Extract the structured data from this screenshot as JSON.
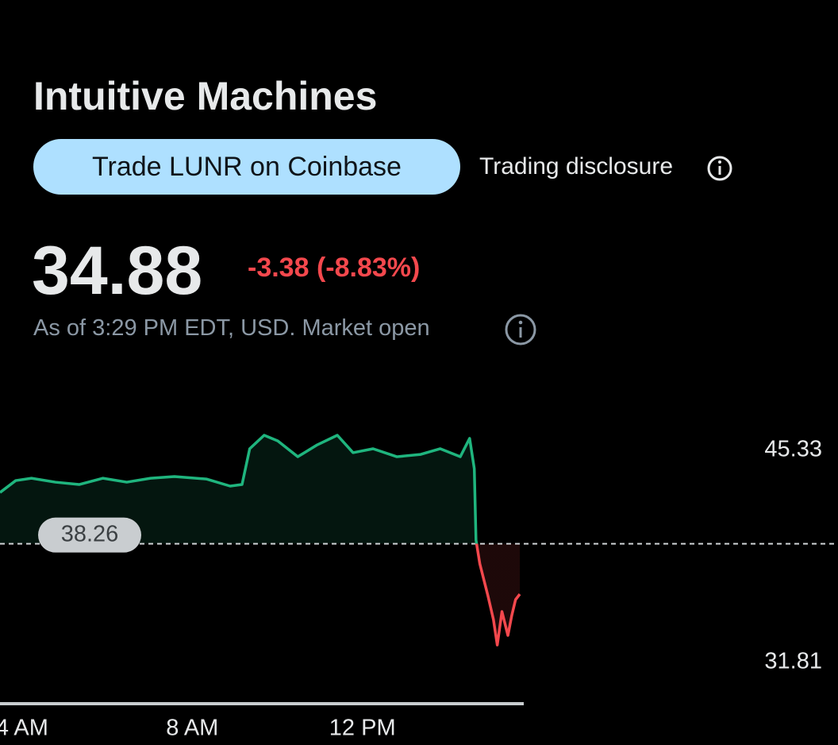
{
  "header": {
    "title": "Intuitive Machines",
    "trade_button": "Trade LUNR on Coinbase",
    "disclosure_link": "Trading disclosure"
  },
  "quote": {
    "price": "34.88",
    "change": "-3.38 (-8.83%)",
    "note": "As of 3:29 PM EDT, USD. Market open"
  },
  "chart_data": {
    "type": "line",
    "x": [
      3.48,
      3.85,
      4.22,
      4.78,
      5.34,
      5.9,
      6.46,
      7.02,
      7.58,
      8.33,
      8.89,
      9.17,
      9.35,
      9.69,
      10.01,
      10.48,
      10.94,
      11.41,
      11.78,
      12.25,
      12.81,
      13.37,
      13.83,
      14.3,
      14.52,
      14.63,
      14.67,
      14.76,
      14.95,
      15.08,
      15.17,
      15.28,
      15.42,
      15.51,
      15.6,
      15.7
    ],
    "series": [
      {
        "name": "LUNR",
        "color": "#1fb57e",
        "down_color": "#f4484d",
        "values": [
          41.53,
          42.29,
          42.44,
          42.19,
          42.04,
          42.44,
          42.19,
          42.44,
          42.55,
          42.39,
          41.94,
          42.04,
          44.32,
          45.18,
          44.82,
          43.81,
          44.57,
          45.18,
          44.07,
          44.32,
          43.81,
          43.96,
          44.32,
          43.81,
          44.98,
          43.05,
          38.49,
          36.98,
          34.95,
          33.43,
          31.81,
          33.94,
          32.42,
          33.68,
          34.7,
          35.05
        ]
      }
    ],
    "previous_close": 38.26,
    "xlim": [
      3.48,
      23.18
    ],
    "xticks": [
      {
        "value": 4,
        "label": "4 AM"
      },
      {
        "value": 8,
        "label": "8 AM"
      },
      {
        "value": 12,
        "label": "12 PM"
      }
    ],
    "ylim": [
      29.89,
      47.61
    ],
    "yticks": [
      45.33,
      31.81
    ]
  }
}
